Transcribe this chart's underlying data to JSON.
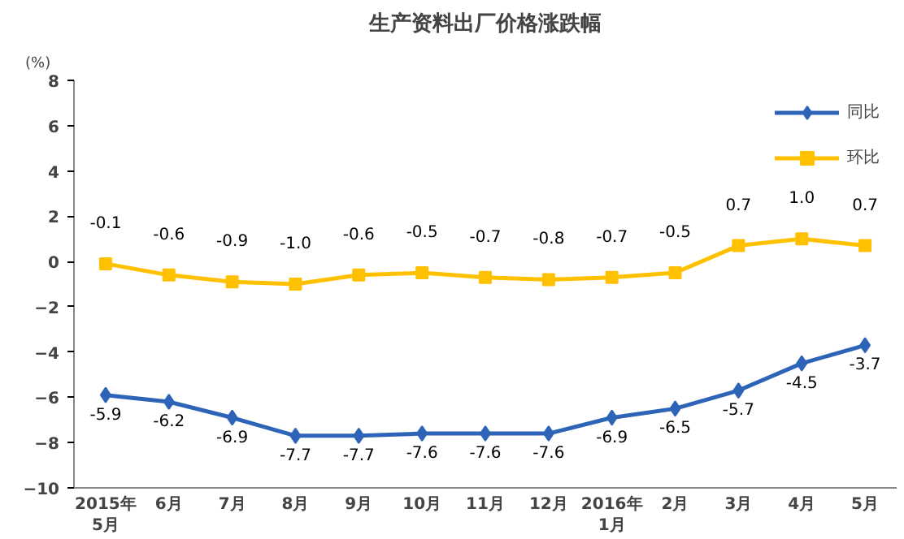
{
  "chart_data": {
    "type": "line",
    "title": "生产资料出厂价格涨跌幅",
    "ylabel": "(%)",
    "categories": [
      "2015年\n5月",
      "6月",
      "7月",
      "8月",
      "9月",
      "10月",
      "11月",
      "12月",
      "2016年\n1月",
      "2月",
      "3月",
      "4月",
      "5月"
    ],
    "series": [
      {
        "name": "同比",
        "color": "#2e64b8",
        "marker": "diamond",
        "values": [
          -5.9,
          -6.2,
          -6.9,
          -7.7,
          -7.7,
          -7.6,
          -7.6,
          -7.6,
          -6.9,
          -6.5,
          -5.7,
          -4.5,
          -3.7
        ],
        "value_labels": [
          "-5.9",
          "-6.2",
          "-6.9",
          "-7.7",
          "-7.7",
          "-7.6",
          "-7.6",
          "-7.6",
          "-6.9",
          "-6.5",
          "-5.7",
          "-4.5",
          "-3.7"
        ]
      },
      {
        "name": "环比",
        "color": "#ffc000",
        "marker": "square",
        "values": [
          -0.1,
          -0.6,
          -0.9,
          -1.0,
          -0.6,
          -0.5,
          -0.7,
          -0.8,
          -0.7,
          -0.5,
          0.7,
          1.0,
          0.7
        ],
        "value_labels": [
          "-0.1",
          "-0.6",
          "-0.9",
          "-1.0",
          "-0.6",
          "-0.5",
          "-0.7",
          "-0.8",
          "-0.7",
          "-0.5",
          "0.7",
          "1.0",
          "0.7"
        ]
      }
    ],
    "ylim": [
      -10,
      8
    ],
    "yticks": [
      -10,
      -8,
      -6,
      -4,
      -2,
      0,
      2,
      4,
      6,
      8
    ],
    "grid": false,
    "legend": "top right",
    "line_style": "solid"
  }
}
